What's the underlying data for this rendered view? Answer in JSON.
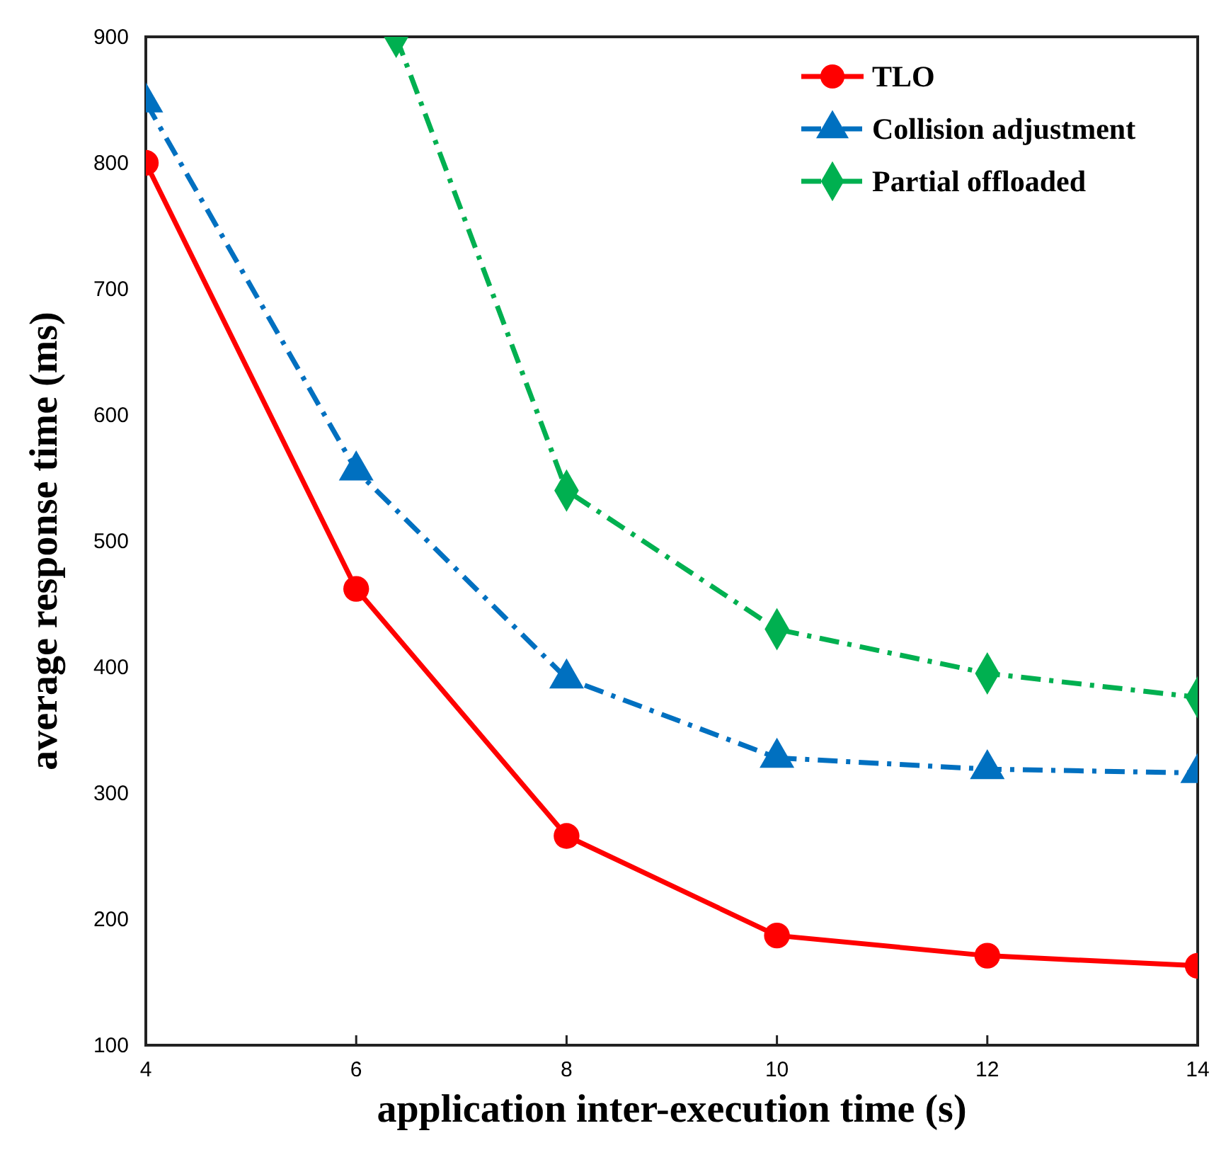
{
  "chart_data": {
    "type": "line",
    "xlabel": "application inter-execution time (s)",
    "ylabel": "average response time (ms)",
    "x": [
      4,
      6,
      8,
      10,
      12,
      14
    ],
    "xlim": [
      4,
      14
    ],
    "xticks": [
      4,
      6,
      8,
      10,
      12,
      14
    ],
    "ylim": [
      100,
      900
    ],
    "yticks": [
      100,
      200,
      300,
      400,
      500,
      600,
      700,
      800,
      900
    ],
    "grid": false,
    "legend": "top right",
    "series": [
      {
        "name": "TLO",
        "color": "#ff0000",
        "marker": "circle",
        "line_style": "solid",
        "values": [
          800,
          462,
          266,
          187,
          171,
          163
        ]
      },
      {
        "name": "Collision adjustment",
        "color": "#0070c0",
        "marker": "triangle",
        "line_style": "dashed",
        "values": [
          848,
          556,
          391,
          328,
          319,
          316
        ]
      },
      {
        "name": "Partial offloaded",
        "color": "#00b050",
        "marker": "diamond",
        "line_style": "dashed",
        "x": [
          6.38,
          8,
          10,
          12,
          14
        ],
        "values": [
          900,
          540,
          430,
          395,
          376
        ]
      }
    ]
  }
}
